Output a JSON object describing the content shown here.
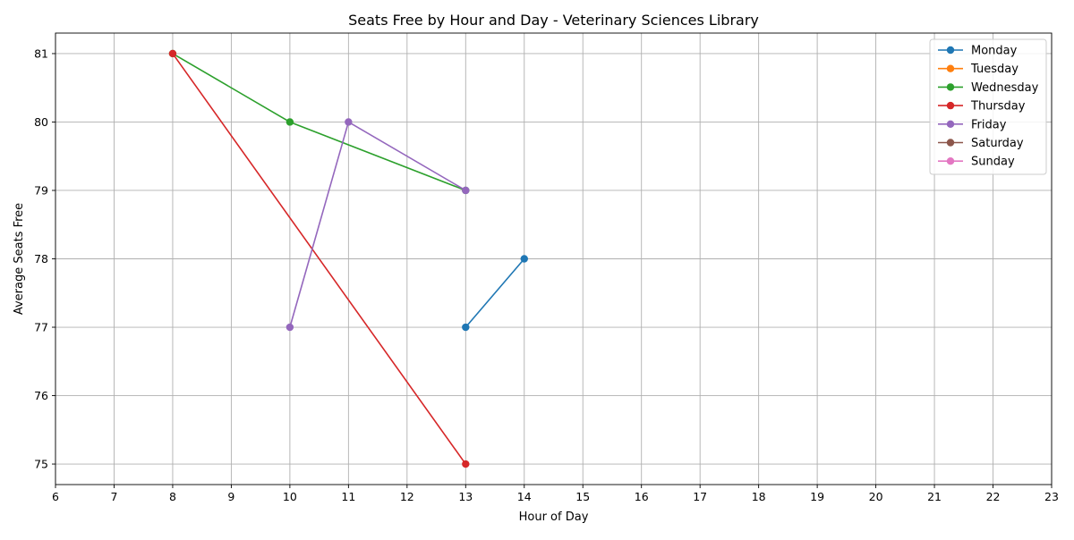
{
  "chart_data": {
    "type": "line",
    "title": "Seats Free by Hour and Day - Veterinary Sciences Library",
    "xlabel": "Hour of Day",
    "ylabel": "Average Seats Free",
    "xlim": [
      6,
      23
    ],
    "ylim": [
      74.7,
      81.3
    ],
    "x_ticks": [
      6,
      7,
      8,
      9,
      10,
      11,
      12,
      13,
      14,
      15,
      16,
      17,
      18,
      19,
      20,
      21,
      22,
      23
    ],
    "y_ticks": [
      75,
      76,
      77,
      78,
      79,
      80,
      81
    ],
    "grid": true,
    "legend_position": "top-right",
    "series": [
      {
        "name": "Monday",
        "color": "#1f77b4",
        "points": [
          [
            13,
            77
          ],
          [
            14,
            78
          ]
        ]
      },
      {
        "name": "Tuesday",
        "color": "#ff7f0e",
        "points": []
      },
      {
        "name": "Wednesday",
        "color": "#2ca02c",
        "points": [
          [
            8,
            81
          ],
          [
            10,
            80
          ],
          [
            13,
            79
          ]
        ]
      },
      {
        "name": "Thursday",
        "color": "#d62728",
        "points": [
          [
            8,
            81
          ],
          [
            13,
            75
          ]
        ]
      },
      {
        "name": "Friday",
        "color": "#9467bd",
        "points": [
          [
            10,
            77
          ],
          [
            11,
            80
          ],
          [
            13,
            79
          ]
        ]
      },
      {
        "name": "Saturday",
        "color": "#8c564b",
        "points": []
      },
      {
        "name": "Sunday",
        "color": "#e377c2",
        "points": []
      }
    ]
  }
}
